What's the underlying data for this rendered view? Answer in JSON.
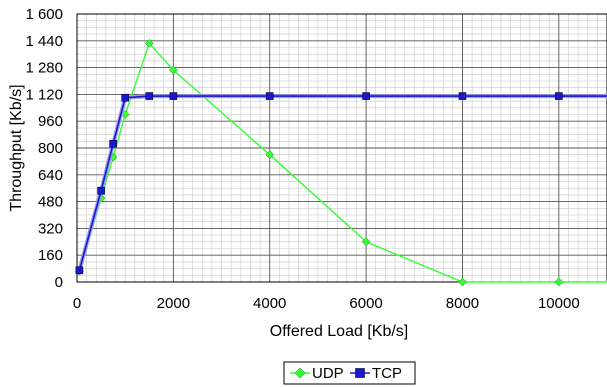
{
  "chart_data": {
    "type": "line",
    "xlabel": "Offered Load [Kb/s]",
    "ylabel": "Throughput [Kb/s]",
    "xlim": [
      0,
      11000
    ],
    "ylim": [
      0,
      1600
    ],
    "x_major_ticks": [
      0,
      2000,
      4000,
      6000,
      8000,
      10000
    ],
    "x_tick_labels": [
      "0",
      "2000",
      "4000",
      "6000",
      "8000",
      "10000"
    ],
    "y_major_ticks": [
      0,
      160,
      320,
      480,
      640,
      800,
      960,
      1120,
      1280,
      1440,
      1600
    ],
    "y_tick_labels": [
      "0",
      "160",
      "320",
      "480",
      "640",
      "800",
      "960",
      "1 120",
      "1 280",
      "1 440",
      "1 600"
    ],
    "x_minor_step": 200,
    "y_minor_step": 40,
    "grid": true,
    "legend_position": "bottom-center",
    "series": [
      {
        "name": "UDP",
        "color": "#33ff33",
        "marker": "diamond",
        "x": [
          50,
          500,
          750,
          1000,
          1500,
          2000,
          4000,
          6000,
          8000,
          10000,
          11000
        ],
        "y": [
          65,
          500,
          745,
          1000,
          1425,
          1265,
          760,
          240,
          0,
          0,
          0
        ]
      },
      {
        "name": "TCP",
        "color": "#1a1acc",
        "marker": "square",
        "x": [
          50,
          500,
          750,
          1000,
          1500,
          2000,
          4000,
          6000,
          8000,
          10000,
          11000
        ],
        "y": [
          70,
          545,
          825,
          1100,
          1110,
          1110,
          1110,
          1110,
          1110,
          1110,
          1110
        ]
      }
    ]
  }
}
